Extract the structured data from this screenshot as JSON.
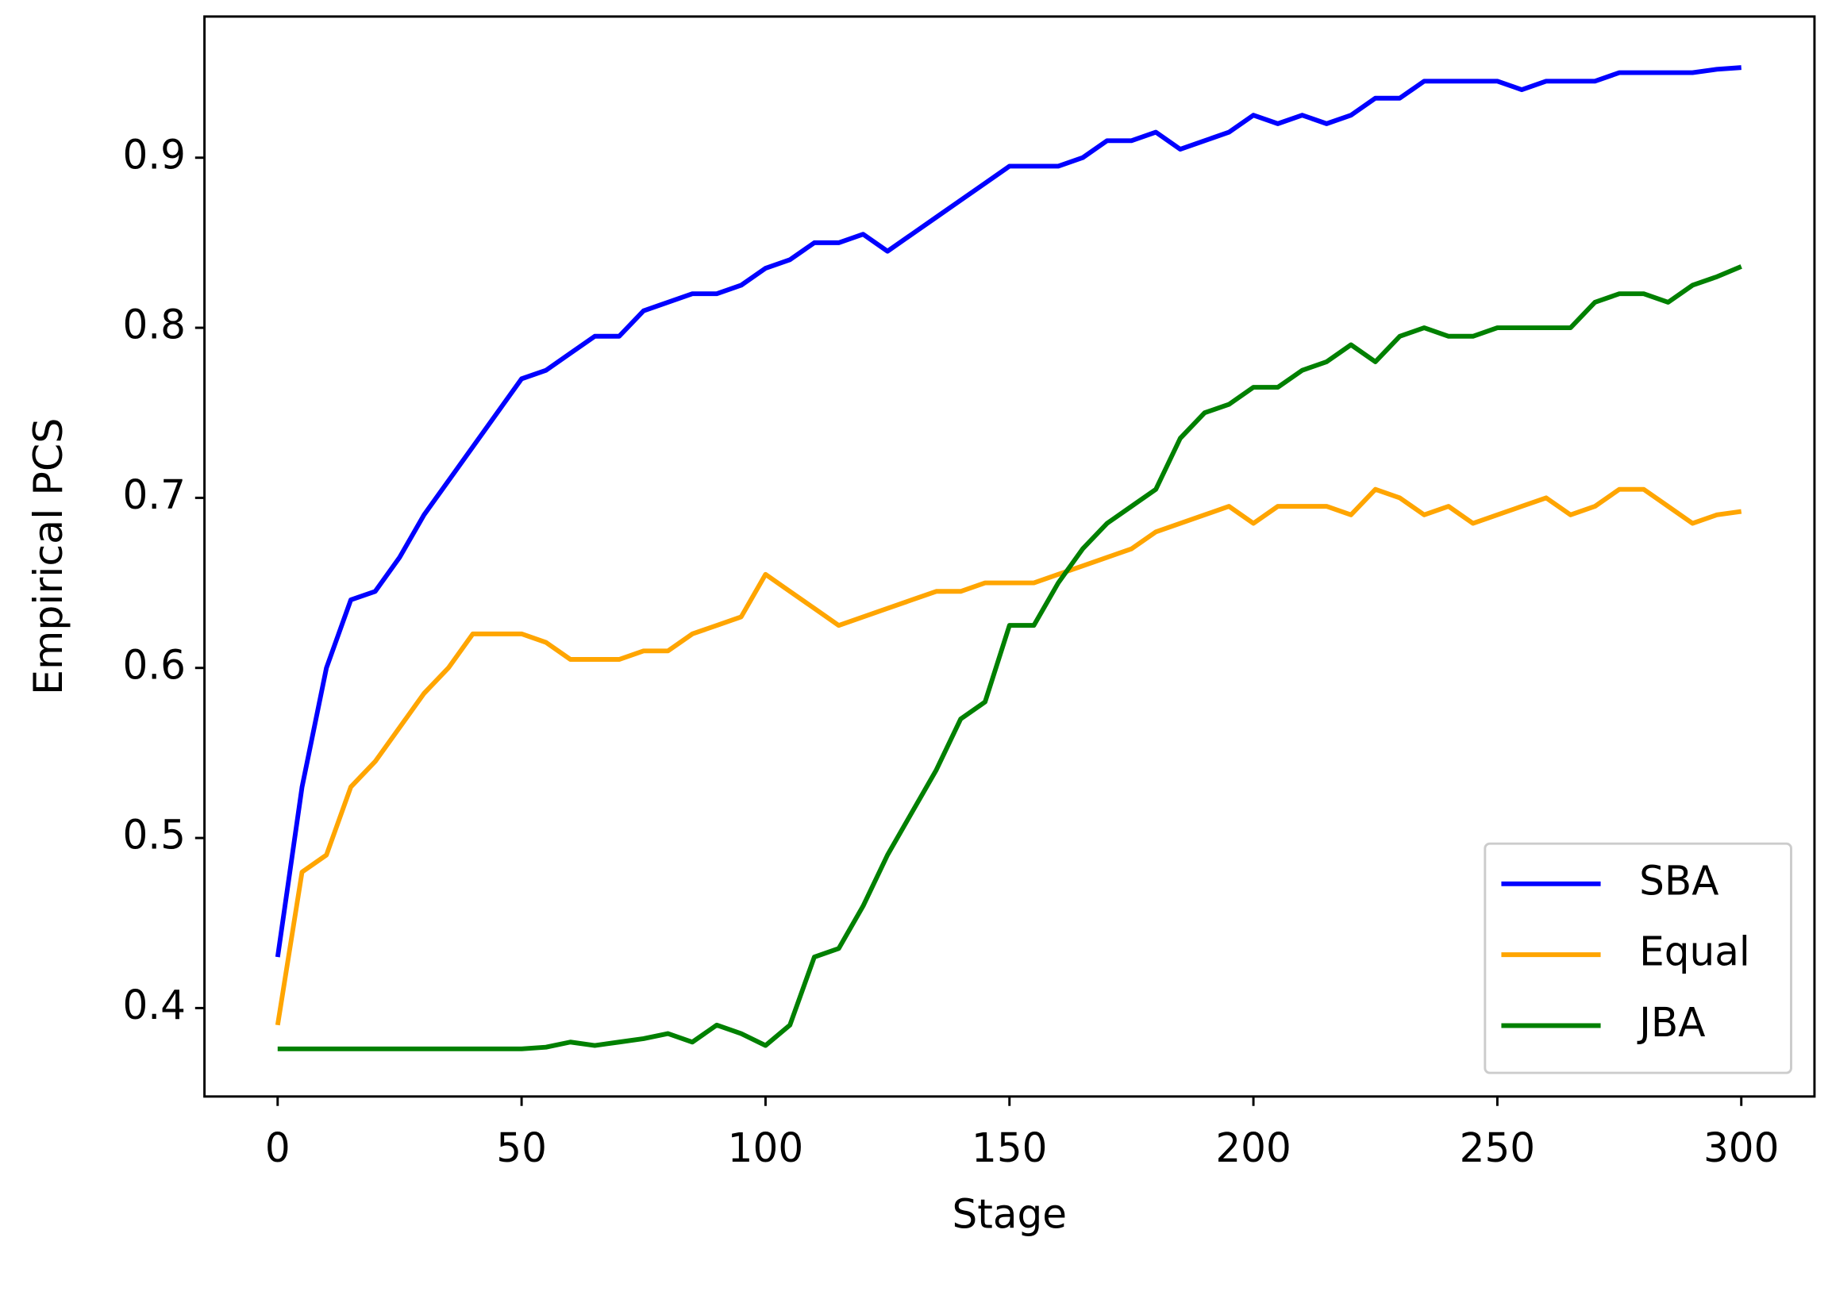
{
  "chart_data": {
    "type": "line",
    "xlabel": "Stage",
    "ylabel": "Empirical PCS",
    "x": [
      0,
      5,
      10,
      15,
      20,
      25,
      30,
      35,
      40,
      45,
      50,
      55,
      60,
      65,
      70,
      75,
      80,
      85,
      90,
      95,
      100,
      105,
      110,
      115,
      120,
      125,
      130,
      135,
      140,
      145,
      150,
      155,
      160,
      165,
      170,
      175,
      180,
      185,
      190,
      195,
      200,
      205,
      210,
      215,
      220,
      225,
      230,
      235,
      240,
      245,
      250,
      255,
      260,
      265,
      270,
      275,
      280,
      285,
      290,
      295,
      300
    ],
    "series": [
      {
        "name": "SBA",
        "color": "#0000ff",
        "values": [
          0.43,
          0.53,
          0.6,
          0.64,
          0.645,
          0.665,
          0.69,
          0.71,
          0.73,
          0.75,
          0.77,
          0.775,
          0.785,
          0.795,
          0.795,
          0.81,
          0.815,
          0.82,
          0.82,
          0.825,
          0.835,
          0.84,
          0.85,
          0.85,
          0.855,
          0.845,
          0.855,
          0.865,
          0.875,
          0.885,
          0.895,
          0.895,
          0.895,
          0.9,
          0.91,
          0.91,
          0.915,
          0.905,
          0.91,
          0.915,
          0.925,
          0.92,
          0.925,
          0.92,
          0.925,
          0.935,
          0.935,
          0.945,
          0.945,
          0.945,
          0.945,
          0.94,
          0.945,
          0.945,
          0.945,
          0.95,
          0.95,
          0.95,
          0.95,
          0.952,
          0.953
        ]
      },
      {
        "name": "Equal",
        "color": "#ffa500",
        "values": [
          0.39,
          0.48,
          0.49,
          0.53,
          0.545,
          0.565,
          0.585,
          0.6,
          0.62,
          0.62,
          0.62,
          0.615,
          0.605,
          0.605,
          0.605,
          0.61,
          0.61,
          0.62,
          0.625,
          0.63,
          0.655,
          0.645,
          0.635,
          0.625,
          0.63,
          0.635,
          0.64,
          0.645,
          0.645,
          0.65,
          0.65,
          0.65,
          0.655,
          0.66,
          0.665,
          0.67,
          0.68,
          0.685,
          0.69,
          0.695,
          0.685,
          0.695,
          0.695,
          0.695,
          0.69,
          0.705,
          0.7,
          0.69,
          0.695,
          0.685,
          0.69,
          0.695,
          0.7,
          0.69,
          0.695,
          0.705,
          0.705,
          0.695,
          0.685,
          0.69,
          0.692
        ]
      },
      {
        "name": "JBA",
        "color": "#008000",
        "values": [
          0.376,
          0.376,
          0.376,
          0.376,
          0.376,
          0.376,
          0.376,
          0.376,
          0.376,
          0.376,
          0.376,
          0.377,
          0.38,
          0.378,
          0.38,
          0.382,
          0.385,
          0.38,
          0.39,
          0.385,
          0.378,
          0.39,
          0.43,
          0.435,
          0.46,
          0.49,
          0.515,
          0.54,
          0.57,
          0.58,
          0.625,
          0.625,
          0.65,
          0.67,
          0.685,
          0.695,
          0.705,
          0.735,
          0.75,
          0.755,
          0.765,
          0.765,
          0.775,
          0.78,
          0.79,
          0.78,
          0.795,
          0.8,
          0.795,
          0.795,
          0.8,
          0.8,
          0.8,
          0.8,
          0.815,
          0.82,
          0.82,
          0.815,
          0.825,
          0.83,
          0.836
        ]
      }
    ],
    "xlim": [
      -15,
      315
    ],
    "xticks": [
      0,
      50,
      100,
      150,
      200,
      250,
      300
    ],
    "ylim": [
      0.348,
      0.983
    ],
    "yticks": [
      0.4,
      0.5,
      0.6,
      0.7,
      0.8,
      0.9
    ],
    "grid": false,
    "legend": "lower right"
  }
}
